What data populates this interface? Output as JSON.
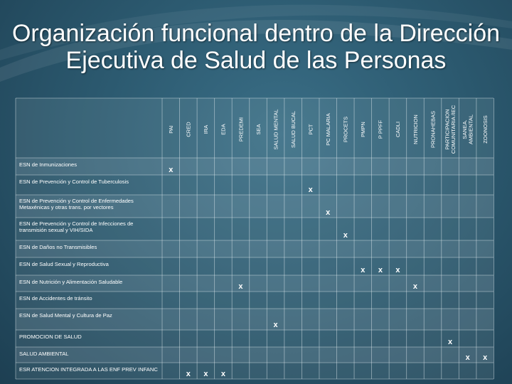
{
  "title": {
    "line1": "Organización funcional dentro de la Dirección",
    "line2": "Ejecutiva de Salud de las Personas"
  },
  "columns": [
    [
      "PAI"
    ],
    [
      "CRED"
    ],
    [
      "IRA"
    ],
    [
      "EDA"
    ],
    [
      "PREDEMI"
    ],
    [
      "SEA"
    ],
    [
      "SALUD MENTAL"
    ],
    [
      "SALUD BUCAL"
    ],
    [
      "PCT"
    ],
    [
      "PC MALARIA"
    ],
    [
      "PROCETS"
    ],
    [
      "PMPN"
    ],
    [
      "P PPFF"
    ],
    [
      "CADLI"
    ],
    [
      "NUTRICION"
    ],
    [
      "PRONAHEBAS"
    ],
    [
      "PARTICIPACION",
      "COMUNITARIA /IEC"
    ],
    [
      "SANEA.",
      "AMBIENTAL"
    ],
    [
      "ZOONOSIS"
    ]
  ],
  "rows": [
    {
      "label": [
        "ESN de Inmunizaciones"
      ],
      "marks": [
        0
      ]
    },
    {
      "label": [
        "ESN de Prevención y Control de Tuberculosis"
      ],
      "marks": [
        8
      ]
    },
    {
      "label": [
        "ESN de Prevención y Control de Enfermedades",
        "Metaxénicas y otras trans. por vectores"
      ],
      "marks": [
        9
      ]
    },
    {
      "label": [
        "ESN de Prevención y Control de Infecciones de",
        "transmisión sexual y VIH/SIDA"
      ],
      "marks": [
        10
      ]
    },
    {
      "label": [
        "ESN de Daños no Transmisibles"
      ],
      "marks": []
    },
    {
      "label": [
        "ESN de Salud Sexual y Reproductiva"
      ],
      "marks": [
        11,
        12,
        13
      ]
    },
    {
      "label": [
        "ESN de Nutrición y Alimentación Saludable"
      ],
      "marks": [
        4,
        14
      ]
    },
    {
      "label": [
        "ESN de Accidentes de tránsito"
      ],
      "marks": []
    },
    {
      "label": [
        "ESN de Salud Mental y Cultura de Paz"
      ],
      "marks": [
        6
      ]
    },
    {
      "label": [
        "PROMOCION DE SALUD"
      ],
      "marks": [
        16
      ]
    },
    {
      "label": [
        "SALUD AMBIENTAL"
      ],
      "marks": [
        17,
        18
      ]
    },
    {
      "label": [
        "ESR ATENCION INTEGRADA A LAS ENF PREV INFANC"
      ],
      "marks": [
        1,
        2,
        3
      ]
    }
  ],
  "mark_symbol": "x"
}
